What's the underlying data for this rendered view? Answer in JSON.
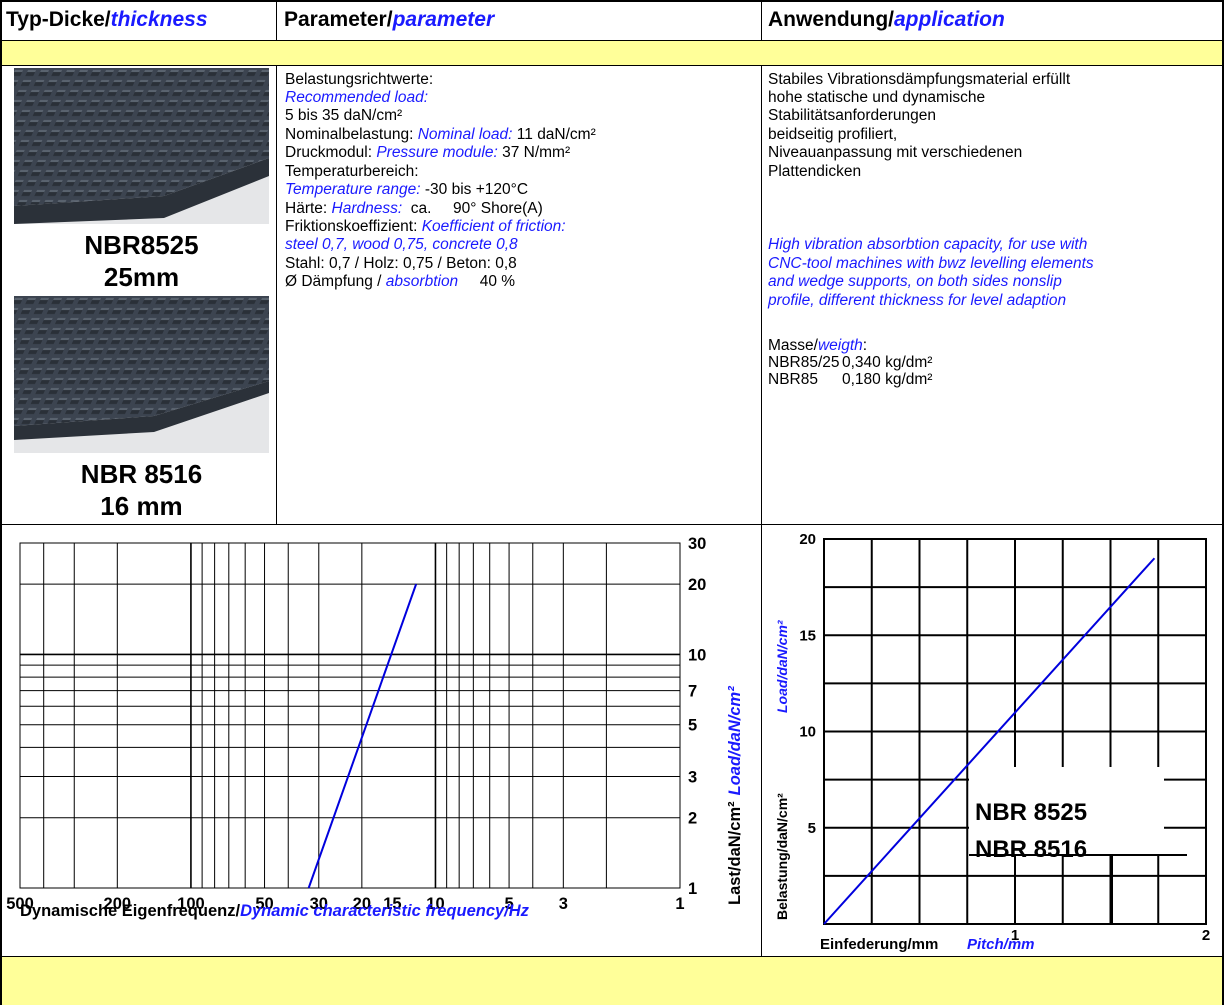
{
  "header": {
    "col1_de": "Typ-Dicke/",
    "col1_en": "thickness",
    "col2_de": "Parameter/",
    "col2_en": "parameter",
    "col3_de": "Anwendung/",
    "col3_en": "application"
  },
  "product": {
    "top_name": "NBR8525",
    "top_thickness": "25mm",
    "bottom_name": "NBR 8516",
    "bottom_thickness": "16 mm"
  },
  "params": {
    "l1": "Belastungsrichtwerte:",
    "l2": "Recommended load:",
    "l3": "5 bis 35 daN/cm²",
    "l4a": "Nominalbelastung: ",
    "l4b": "Nominal load:",
    "l4c": " 11 daN/cm²",
    "l5a": "Druckmodul: ",
    "l5b": "Pressure module:",
    "l5c": " 37 N/mm²",
    "l6": "Temperaturbereich:",
    "l7a": "Temperature range:",
    "l7b": " -30 bis +120°C",
    "l8a": "Härte: ",
    "l8b": "Hardness:",
    "l8c": "  ca.     90° Shore(A)",
    "l9a": "Friktionskoeffizient: ",
    "l9b": "Koefficient of friction:",
    "l10": "steel 0,7, wood 0,75, concrete 0,8",
    "l11": "Stahl: 0,7 / Holz: 0,75 / Beton: 0,8",
    "l12a": "Ø Dämpfung / ",
    "l12b": "absorbtion",
    "l12c": "     40 %"
  },
  "application": {
    "de1": "Stabiles Vibrationsdämpfungsmaterial erfüllt",
    "de2": "hohe statische und dynamische",
    "de3": "Stabilitätsanforderungen",
    "de4": "beidseitig profiliert,",
    "de5": "Niveauanpassung mit verschiedenen",
    "de6": "Plattendicken",
    "en1": "High vibration absorbtion capacity, for use with",
    "en2": "CNC-tool machines with bwz levelling elements",
    "en3": "and wedge supports, on both sides nonslip",
    "en4": "profile, different thickness for level adaption",
    "mass_de": "Masse/",
    "mass_en": "weigth",
    "mass_colon": ":",
    "m1_name": "NBR85/25",
    "m1_val": "0,340 kg/dm²",
    "m2_name": "NBR85",
    "m2_val": "0,180 kg/dm²"
  },
  "chart_data": [
    {
      "type": "line",
      "x_scale": "log",
      "y_scale": "log",
      "x_reversed": true,
      "x_ticks": [
        "500",
        "200",
        "100",
        "50",
        "30",
        "20",
        "15",
        "10",
        "5",
        "3",
        "1"
      ],
      "y_ticks": [
        "1",
        "2",
        "3",
        "5",
        "7",
        "10",
        "20",
        "30"
      ],
      "xlabel_de": "Dynamische Eigenfrequenz/",
      "xlabel_en": "Dynamic characteristic frequency/Hz",
      "ylabel_de": "Last/daN/cm²",
      "ylabel_en": "Load/daN/cm²",
      "series": [
        {
          "x": [
            33,
            12
          ],
          "y": [
            1,
            20
          ]
        }
      ],
      "line_color": "#0000dd",
      "grid": true
    },
    {
      "type": "line",
      "x_ticks": [
        "1",
        "2"
      ],
      "y_ticks": [
        "5",
        "10",
        "15",
        "20"
      ],
      "xlim": [
        0,
        2
      ],
      "ylim": [
        0,
        20
      ],
      "xlabel_de": "Einfederung/mm",
      "xlabel_en": "Pitch/mm",
      "ylabel_de": "Belastung/daN/cm²",
      "ylabel_en": "Load/daN/cm²",
      "legend_1": "NBR 8525",
      "legend_2": "NBR 8516",
      "series": [
        {
          "x": [
            0,
            1.73
          ],
          "y": [
            0,
            19
          ]
        }
      ],
      "line_color": "#0000dd",
      "grid": true
    }
  ]
}
